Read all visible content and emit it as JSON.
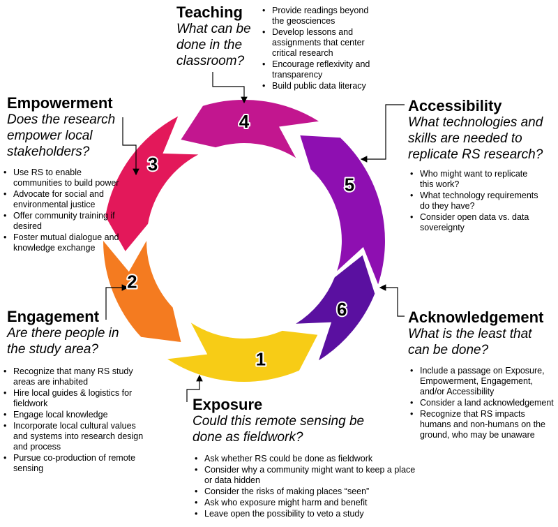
{
  "stages": [
    {
      "num": "1",
      "color": "#f7cc16",
      "title": "Exposure",
      "question": "Could this remote sensing be done as fieldwork?",
      "bullets": [
        "Ask whether RS could be done as fieldwork",
        "Consider why a community might want to keep a place or data hidden",
        "Consider the risks of making places “seen”",
        "Ask who exposure might harm and benefit",
        "Leave open the possibility to veto a study"
      ]
    },
    {
      "num": "2",
      "color": "#f47b20",
      "title": "Engagement",
      "question": "Are there people in the study area?",
      "bullets": [
        "Recognize that many RS study areas are inhabited",
        "Hire local guides & logistics for fieldwork",
        "Engage local knowledge",
        "Incorporate local cultural values and systems into research design and process",
        "Pursue co-production of remote sensing"
      ]
    },
    {
      "num": "3",
      "color": "#e3185a",
      "title": "Empowerment",
      "question": "Does the research empower local stakeholders?",
      "bullets": [
        "Use RS to enable communities to build power",
        "Advocate for social and environmental justice",
        "Offer community training if desired",
        "Foster mutual dialogue and knowledge exchange"
      ]
    },
    {
      "num": "4",
      "color": "#c2168f",
      "title": "Teaching",
      "question": "What can be done in the classroom?",
      "bullets": [
        "Provide readings beyond the geosciences",
        "Develop lessons and assignments that center critical research",
        "Encourage reflexivity and transparency",
        "Build public data literacy"
      ]
    },
    {
      "num": "5",
      "color": "#8e0fb1",
      "title": "Accessibility",
      "question": "What technologies and skills are needed to replicate RS research?",
      "bullets": [
        "Who might want to replicate this work?",
        "What technology requirements do they have?",
        "Consider open data vs. data sovereignty"
      ]
    },
    {
      "num": "6",
      "color": "#5a10a0",
      "title": "Acknowledgement",
      "question": "What is the least that can be done?",
      "bullets": [
        "Include a passage on Exposure, Empowerment, Engagement, and/or Accessibility",
        "Consider a land acknowledgement",
        "Recognize that RS impacts humans and non-humans on the ground, who may be unaware"
      ]
    }
  ]
}
